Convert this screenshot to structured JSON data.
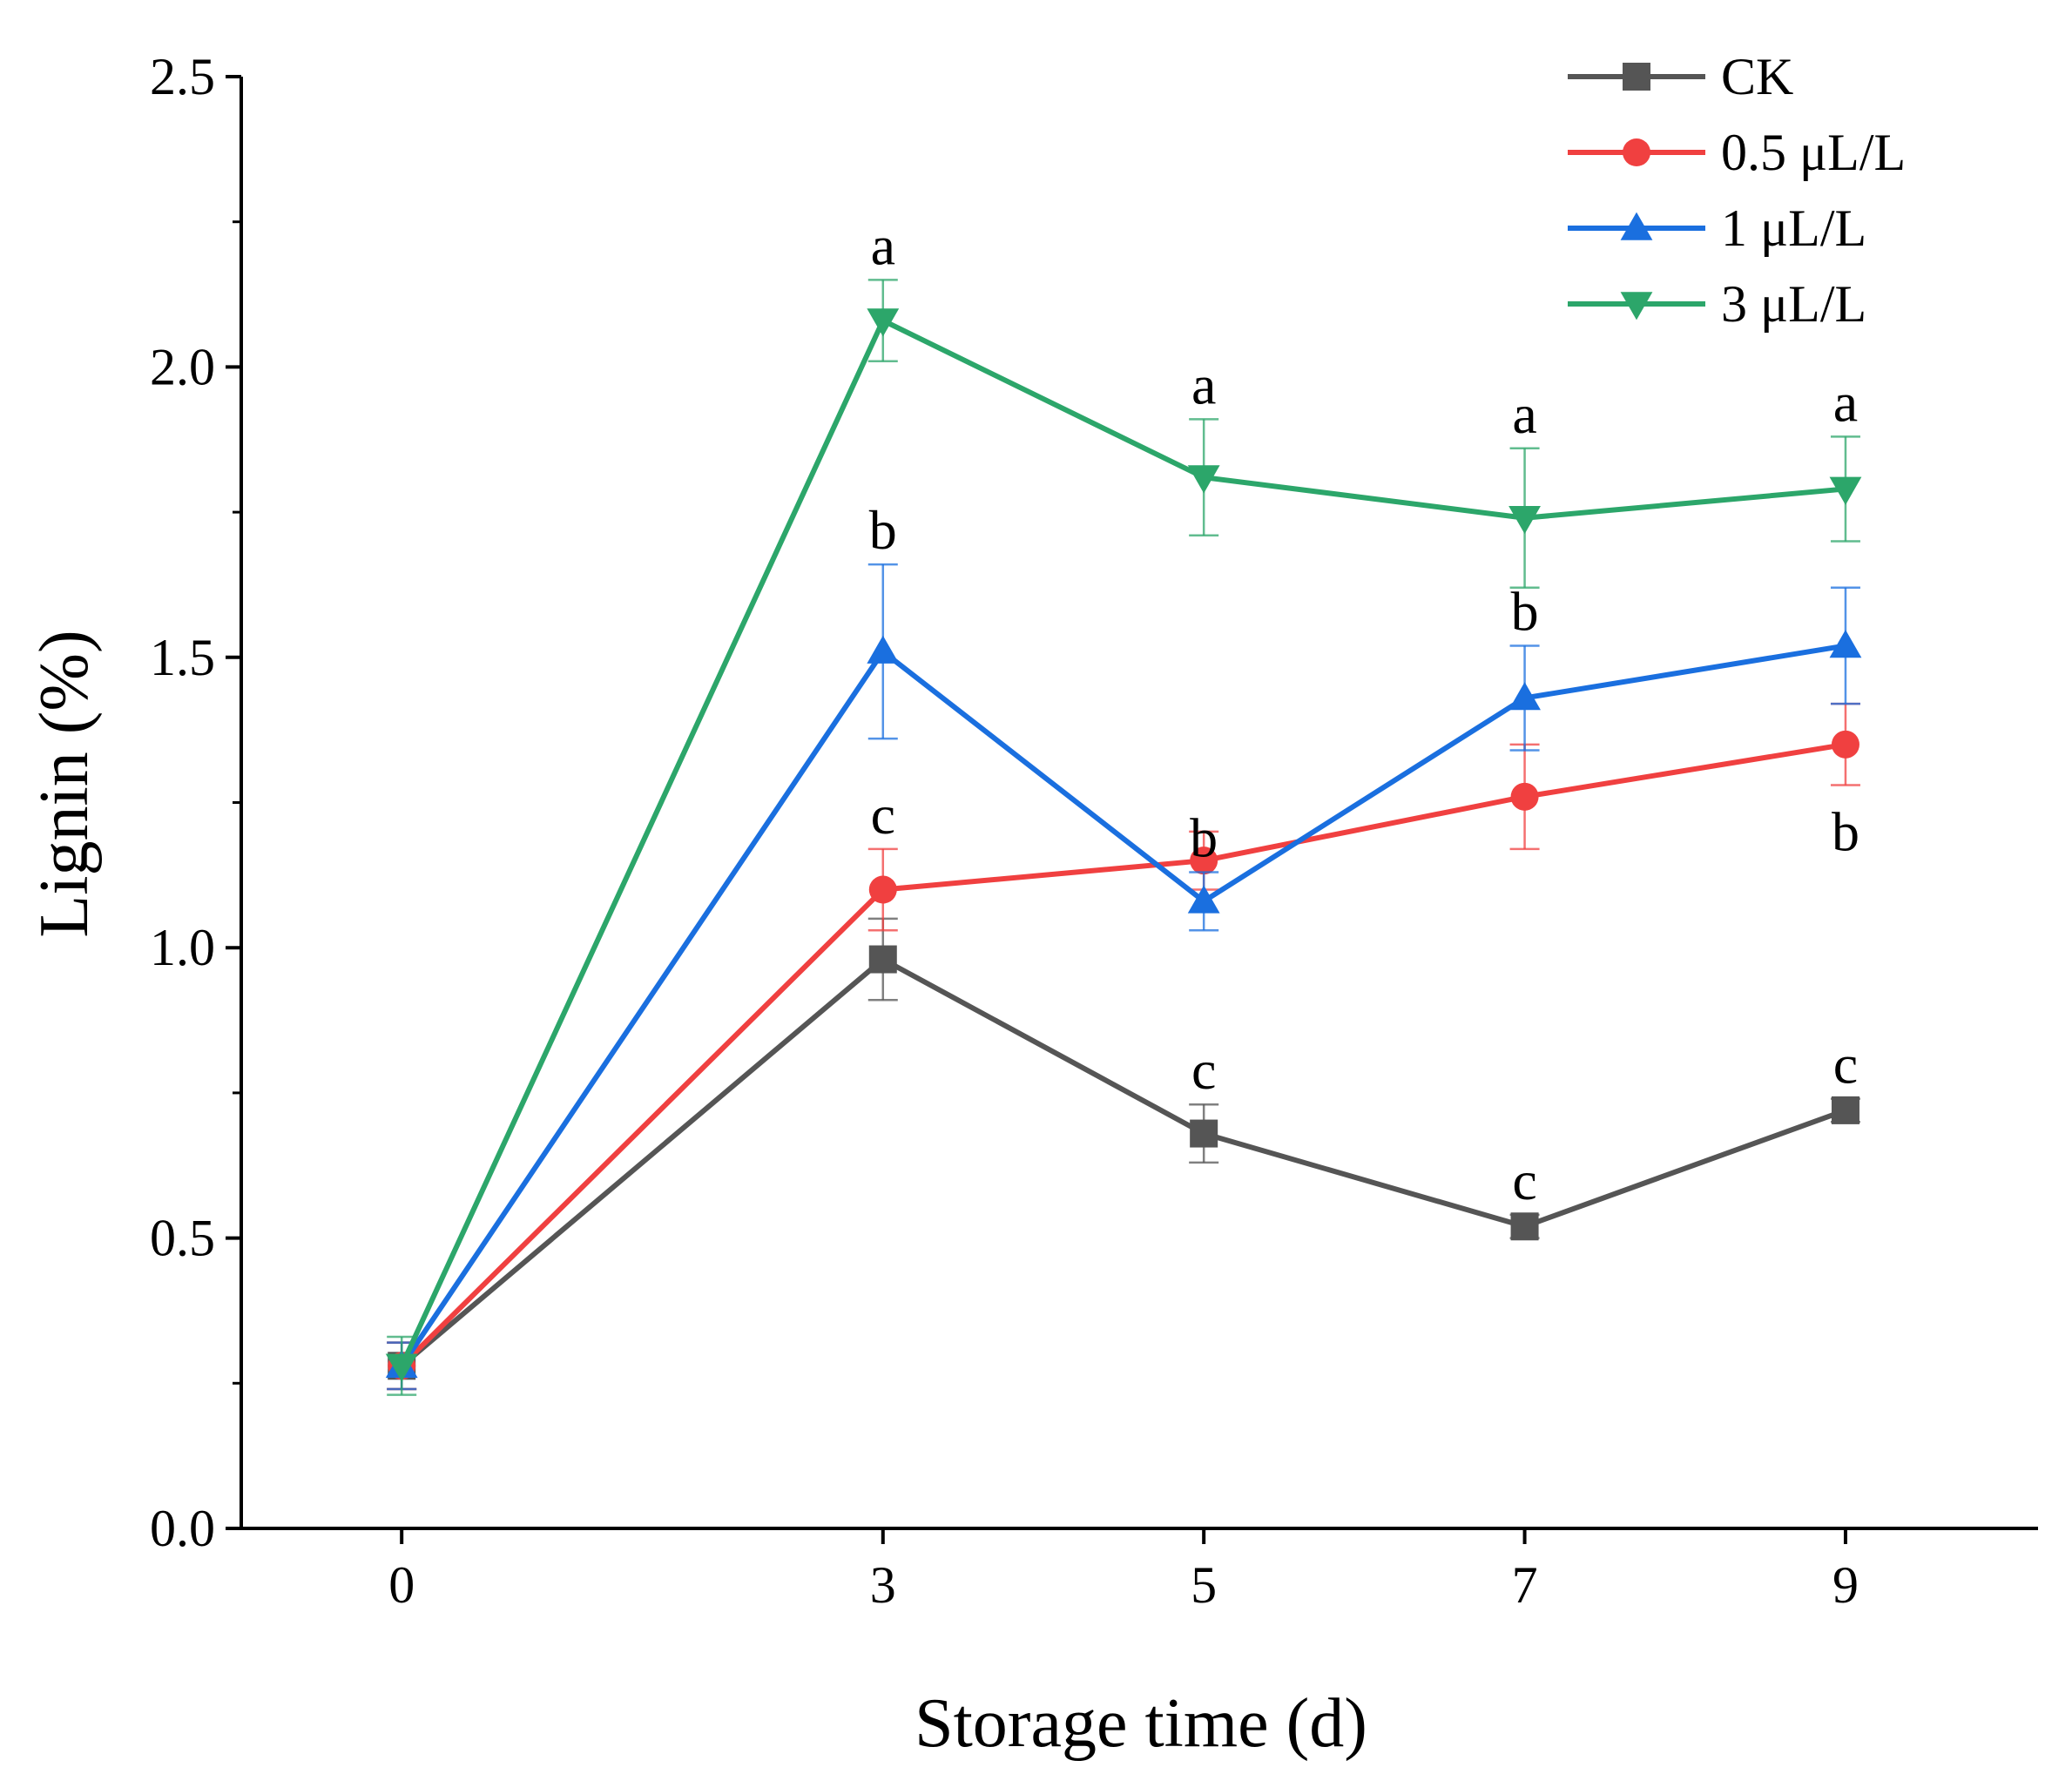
{
  "chart_data": {
    "type": "line",
    "title": "",
    "xlabel": "Storage time (d)",
    "ylabel": "Lignin (%)",
    "x": [
      0,
      3,
      5,
      7,
      9
    ],
    "xlim": [
      -1,
      10.2
    ],
    "ylim": [
      0,
      2.5
    ],
    "xticks": [
      0,
      3,
      5,
      7,
      9
    ],
    "yticks": [
      0.0,
      0.5,
      1.0,
      1.5,
      2.0,
      2.5
    ],
    "ytick_labels": [
      "0.0",
      "0.5",
      "1.0",
      "1.5",
      "2.0",
      "2.5"
    ],
    "legend_position": "top-right",
    "series": [
      {
        "name": "CK",
        "color": "#555555",
        "marker": "square",
        "values": [
          0.28,
          0.98,
          0.68,
          0.52,
          0.72
        ],
        "errors": [
          0.04,
          0.07,
          0.05,
          0.02,
          0.02
        ],
        "labels": [
          "",
          "",
          "c",
          "c",
          "c"
        ],
        "label_side": [
          "",
          "",
          "above",
          "above",
          "above"
        ]
      },
      {
        "name": "0.5 μL/L",
        "color": "#f04040",
        "marker": "circle",
        "values": [
          0.28,
          1.1,
          1.15,
          1.26,
          1.35
        ],
        "errors": [
          0.04,
          0.07,
          0.05,
          0.09,
          0.07
        ],
        "labels": [
          "",
          "c",
          "",
          "",
          "b"
        ],
        "label_side": [
          "",
          "above",
          "",
          "",
          "below"
        ]
      },
      {
        "name": "1 μL/L",
        "color": "#1a6fdf",
        "marker": "triangle-up",
        "values": [
          0.28,
          1.51,
          1.08,
          1.43,
          1.52
        ],
        "errors": [
          0.04,
          0.15,
          0.05,
          0.09,
          0.1
        ],
        "labels": [
          "",
          "b",
          "b",
          "b",
          ""
        ],
        "label_side": [
          "",
          "above",
          "above",
          "above",
          ""
        ]
      },
      {
        "name": "3 μL/L",
        "color": "#2ca66a",
        "marker": "triangle-down",
        "values": [
          0.28,
          2.08,
          1.81,
          1.74,
          1.79
        ],
        "errors": [
          0.05,
          0.07,
          0.1,
          0.12,
          0.09
        ],
        "labels": [
          "",
          "a",
          "a",
          "a",
          "a"
        ],
        "label_side": [
          "",
          "above",
          "above",
          "above",
          "above"
        ]
      }
    ]
  }
}
